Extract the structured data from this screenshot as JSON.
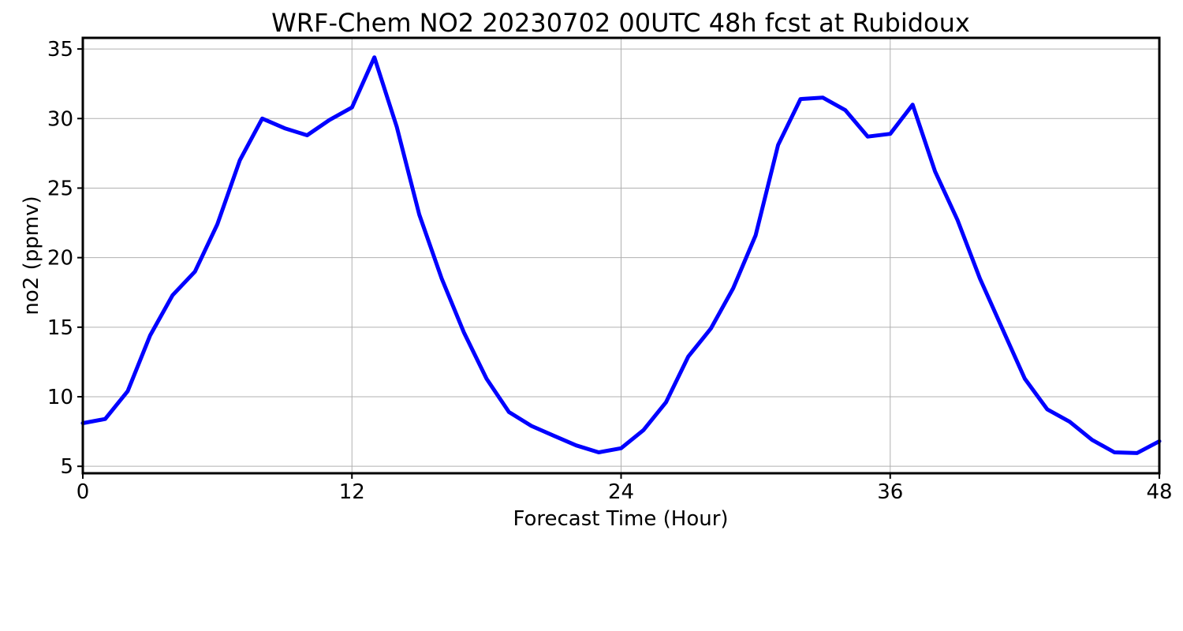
{
  "chart_data": {
    "type": "line",
    "title": "WRF-Chem NO2  20230702 00UTC 48h fcst at Rubidoux",
    "xlabel": "Forecast Time (Hour)",
    "ylabel": "no2  (ppmv)",
    "xlim": [
      0,
      48
    ],
    "ylim": [
      4.5,
      35.8
    ],
    "xticks": [
      0,
      12,
      24,
      36,
      48
    ],
    "yticks": [
      5,
      10,
      15,
      20,
      25,
      30,
      35
    ],
    "grid": true,
    "color": "#0000ff",
    "series": [
      {
        "x": [
          0,
          1,
          2,
          3,
          4,
          5,
          6,
          7,
          8,
          9,
          10,
          11,
          12,
          13,
          14,
          15,
          16,
          17,
          18,
          19,
          20,
          21,
          22,
          23,
          24,
          25,
          26,
          27,
          28,
          29,
          30,
          31,
          32,
          33,
          34,
          35,
          36,
          37,
          38,
          39,
          40,
          41,
          42,
          43,
          44,
          45,
          46,
          47,
          48
        ],
        "values": [
          8.1,
          8.4,
          10.4,
          14.4,
          17.3,
          19.0,
          22.4,
          27.0,
          30.0,
          29.3,
          28.8,
          29.9,
          30.8,
          34.4,
          29.4,
          23.1,
          18.5,
          14.6,
          11.3,
          8.9,
          7.9,
          7.2,
          6.5,
          6.0,
          6.3,
          7.6,
          9.6,
          12.9,
          14.9,
          17.8,
          21.6,
          28.1,
          31.4,
          31.5,
          30.6,
          28.7,
          28.9,
          31.0,
          26.2,
          22.7,
          18.5,
          14.9,
          11.3,
          9.1,
          8.2,
          6.9,
          6.0,
          5.95,
          6.8
        ]
      }
    ]
  }
}
